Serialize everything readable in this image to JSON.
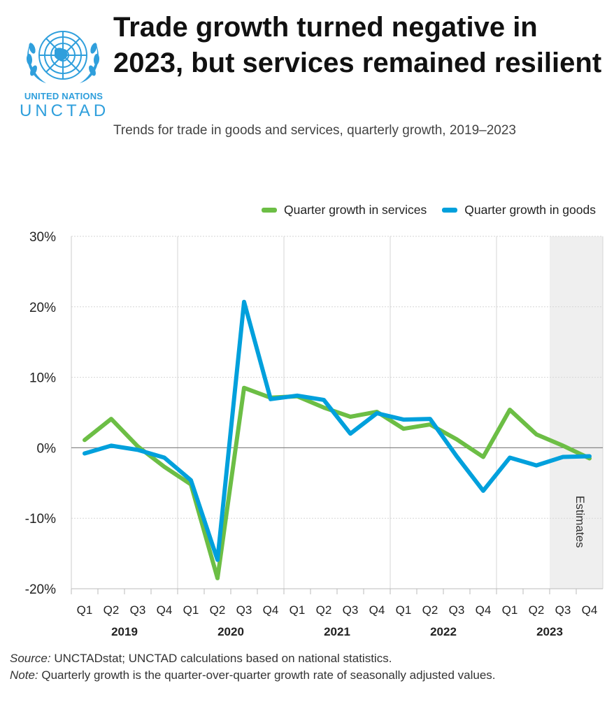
{
  "logo": {
    "line1": "UNITED NATIONS",
    "line2": "UNCTAD",
    "accent": "#2f9fdc"
  },
  "header": {
    "title": "Trade growth turned negative in 2023, but services remained resilient",
    "subtitle": "Trends for trade in goods and services, quarterly growth, 2019–2023"
  },
  "chart_data": {
    "type": "line",
    "categories": [
      "Q1",
      "Q2",
      "Q3",
      "Q4",
      "Q1",
      "Q2",
      "Q3",
      "Q4",
      "Q1",
      "Q2",
      "Q3",
      "Q4",
      "Q1",
      "Q2",
      "Q3",
      "Q4",
      "Q1",
      "Q2",
      "Q3",
      "Q4"
    ],
    "years": [
      "2019",
      "2020",
      "2021",
      "2022",
      "2023"
    ],
    "series": [
      {
        "name": "Quarter growth in services",
        "color": "#6cbe45",
        "values": [
          1.1,
          4.1,
          0.2,
          -2.7,
          -5.2,
          -18.5,
          8.5,
          7.1,
          7.3,
          5.7,
          4.4,
          5.1,
          2.7,
          3.3,
          1.2,
          -1.3,
          5.4,
          1.9,
          0.3,
          -1.5
        ]
      },
      {
        "name": "Quarter growth in goods",
        "color": "#00a0dc",
        "values": [
          -0.8,
          0.3,
          -0.3,
          -1.4,
          -4.6,
          -15.9,
          20.7,
          6.9,
          7.4,
          6.8,
          2.0,
          4.9,
          4.0,
          4.1,
          -1.2,
          -6.1,
          -1.4,
          -2.5,
          -1.3,
          -1.2
        ]
      }
    ],
    "ylim": [
      -20,
      30
    ],
    "yticks": [
      -20,
      -10,
      0,
      10,
      20,
      30
    ],
    "ytick_labels": [
      "-20%",
      "-10%",
      "0%",
      "10%",
      "20%",
      "30%"
    ],
    "shaded_region": {
      "label": "Estimates",
      "from_index": 18,
      "to_index": 19
    },
    "legend_position": "top-right",
    "grid": true
  },
  "footer": {
    "source_label": "Source:",
    "source_text": " UNCTADstat; UNCTAD calculations based on national statistics.",
    "note_label": "Note:",
    "note_text": " Quarterly growth is the quarter-over-quarter growth rate of seasonally adjusted values."
  }
}
